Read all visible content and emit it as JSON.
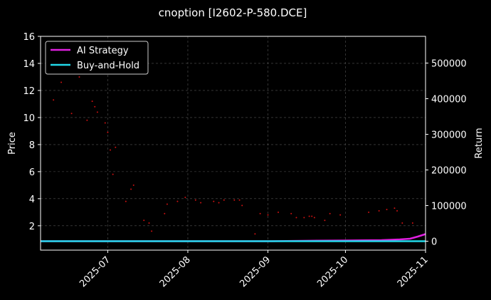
{
  "chart_data": {
    "type": "line",
    "title": "cnoption [I2602-P-580.DCE]",
    "xlabel": "",
    "ylabel_left": "Price",
    "ylabel_right": "Return",
    "x_ticks": [
      "2025-07",
      "2025-08",
      "2025-09",
      "2025-10",
      "2025-11"
    ],
    "x_range": [
      "2025-06-05",
      "2025-11-01"
    ],
    "y_left_ticks": [
      2,
      4,
      6,
      8,
      10,
      12,
      14,
      16
    ],
    "y_left_range": [
      0.2,
      16
    ],
    "y_right_ticks": [
      0,
      100000,
      200000,
      300000,
      400000,
      500000
    ],
    "y_right_range": [
      -25000,
      575000
    ],
    "grid": true,
    "legend_position": "top-left",
    "colors": {
      "background": "#000000",
      "ai_strategy": "#e020e0",
      "buy_and_hold": "#22d8e8",
      "price_dots": "#cc1111",
      "grid": "#555555",
      "text": "#ffffff"
    },
    "series": [
      {
        "name": "AI Strategy",
        "axis": "right",
        "x": [
          "2025-06-05",
          "2025-07-01",
          "2025-08-01",
          "2025-09-01",
          "2025-09-20",
          "2025-10-01",
          "2025-10-15",
          "2025-10-22",
          "2025-10-26",
          "2025-10-29",
          "2025-11-01"
        ],
        "values": [
          0,
          0,
          0,
          0,
          1500,
          2000,
          3000,
          5000,
          7000,
          13000,
          20000
        ]
      },
      {
        "name": "Buy-and-Hold",
        "axis": "right",
        "x": [
          "2025-06-05",
          "2025-11-01"
        ],
        "values": [
          0,
          0
        ]
      },
      {
        "name": "Price",
        "axis": "left",
        "type": "scatter",
        "x": [
          "2025-06-10",
          "2025-06-13",
          "2025-06-17",
          "2025-06-20",
          "2025-06-23",
          "2025-06-25",
          "2025-06-26",
          "2025-06-27",
          "2025-06-30",
          "2025-07-01",
          "2025-07-02",
          "2025-07-03",
          "2025-07-04",
          "2025-07-08",
          "2025-07-10",
          "2025-07-11",
          "2025-07-15",
          "2025-07-17",
          "2025-07-18",
          "2025-07-23",
          "2025-07-24",
          "2025-07-28",
          "2025-07-31",
          "2025-08-04",
          "2025-08-06",
          "2025-08-11",
          "2025-08-13",
          "2025-08-15",
          "2025-08-19",
          "2025-08-21",
          "2025-08-22",
          "2025-08-27",
          "2025-08-29",
          "2025-09-01",
          "2025-09-05",
          "2025-09-10",
          "2025-09-12",
          "2025-09-15",
          "2025-09-17",
          "2025-09-18",
          "2025-09-19",
          "2025-09-23",
          "2025-09-25",
          "2025-09-29",
          "2025-10-10",
          "2025-10-14",
          "2025-10-17",
          "2025-10-20",
          "2025-10-21",
          "2025-10-23",
          "2025-10-27"
        ],
        "values": [
          11.3,
          12.6,
          10.3,
          13.0,
          9.8,
          11.2,
          10.8,
          10.4,
          9.6,
          8.9,
          7.6,
          5.8,
          7.8,
          3.8,
          4.7,
          5.0,
          2.4,
          2.2,
          1.6,
          2.9,
          3.6,
          3.8,
          4.1,
          3.9,
          3.7,
          3.8,
          3.7,
          3.9,
          3.9,
          3.9,
          3.5,
          1.4,
          2.9,
          2.8,
          3.0,
          2.9,
          2.6,
          2.6,
          2.7,
          2.7,
          2.6,
          2.4,
          2.9,
          2.8,
          3.0,
          3.1,
          3.2,
          3.3,
          3.1,
          2.2,
          2.2
        ]
      }
    ]
  }
}
